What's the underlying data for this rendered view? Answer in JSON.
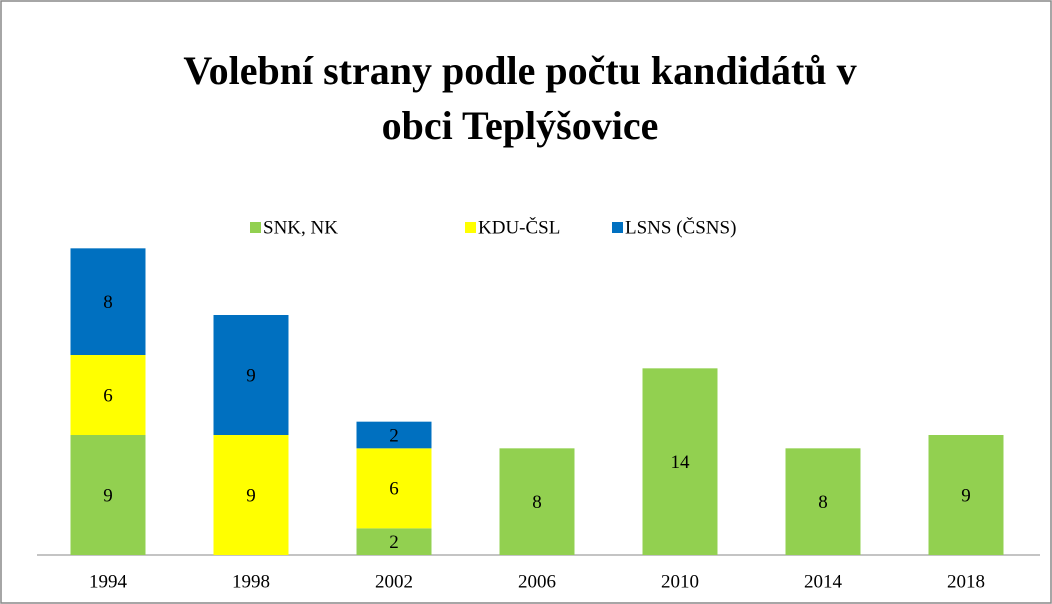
{
  "chart_data": {
    "type": "stacked_bar",
    "title": "Volební strany podle počtu kandidátů v obci Teplýšovice",
    "categories": [
      "1994",
      "1998",
      "2002",
      "2006",
      "2010",
      "2014",
      "2018"
    ],
    "series": [
      {
        "name": "SNK, NK",
        "color": "#92d050",
        "values": [
          9,
          null,
          2,
          8,
          14,
          8,
          9
        ]
      },
      {
        "name": "KDU-ČSL",
        "color": "#ffff00",
        "values": [
          6,
          9,
          6,
          null,
          null,
          null,
          null
        ]
      },
      {
        "name": "LSNS (ČSNS)",
        "color": "#0070c0",
        "values": [
          8,
          9,
          2,
          null,
          null,
          null,
          null
        ]
      }
    ],
    "legend": "top"
  }
}
